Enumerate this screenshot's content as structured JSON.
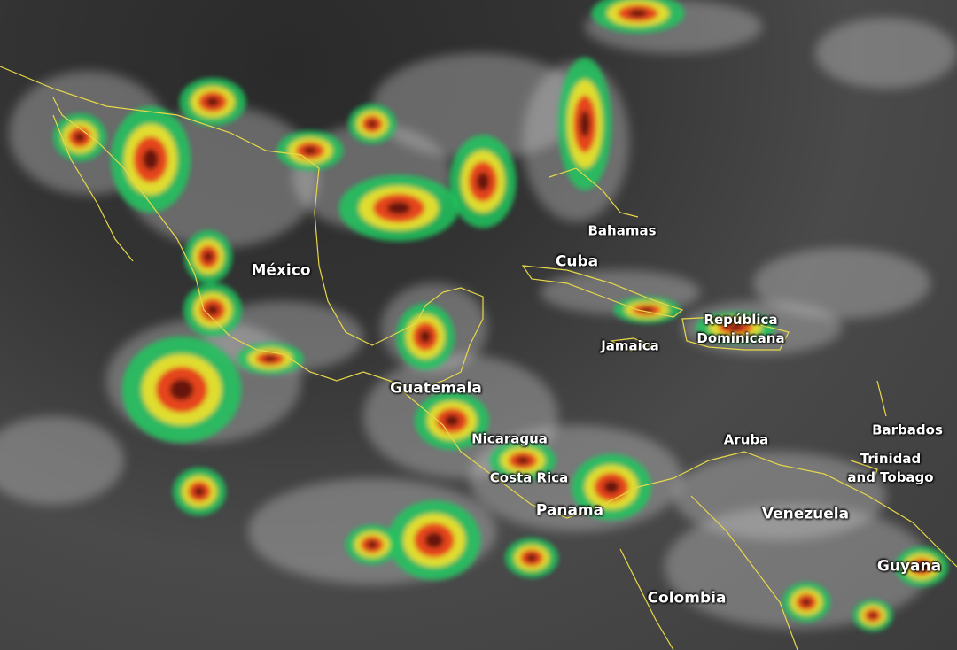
{
  "map": {
    "type": "infrared satellite image",
    "colors": {
      "cloud": "#d8d8d8",
      "low": "#22c55e",
      "mid": "#f5e12a",
      "high": "#e53b1e",
      "extreme": "#5a0f0f",
      "border": "#e6d84a"
    },
    "labels": {
      "mexico": "México",
      "bahamas": "Bahamas",
      "cuba": "Cuba",
      "dominican_1": "República",
      "dominican_2": "Dominicana",
      "jamaica": "Jamaica",
      "guatemala": "Guatemala",
      "nicaragua": "Nicaragua",
      "costa_rica": "Costa Rica",
      "panama": "Panama",
      "aruba": "Aruba",
      "barbados": "Barbados",
      "trinidad_1": "Trinidad",
      "trinidad_2": "and Tobago",
      "venezuela": "Venezuela",
      "guyana": "Guyana",
      "colombia": "Colombia"
    }
  }
}
